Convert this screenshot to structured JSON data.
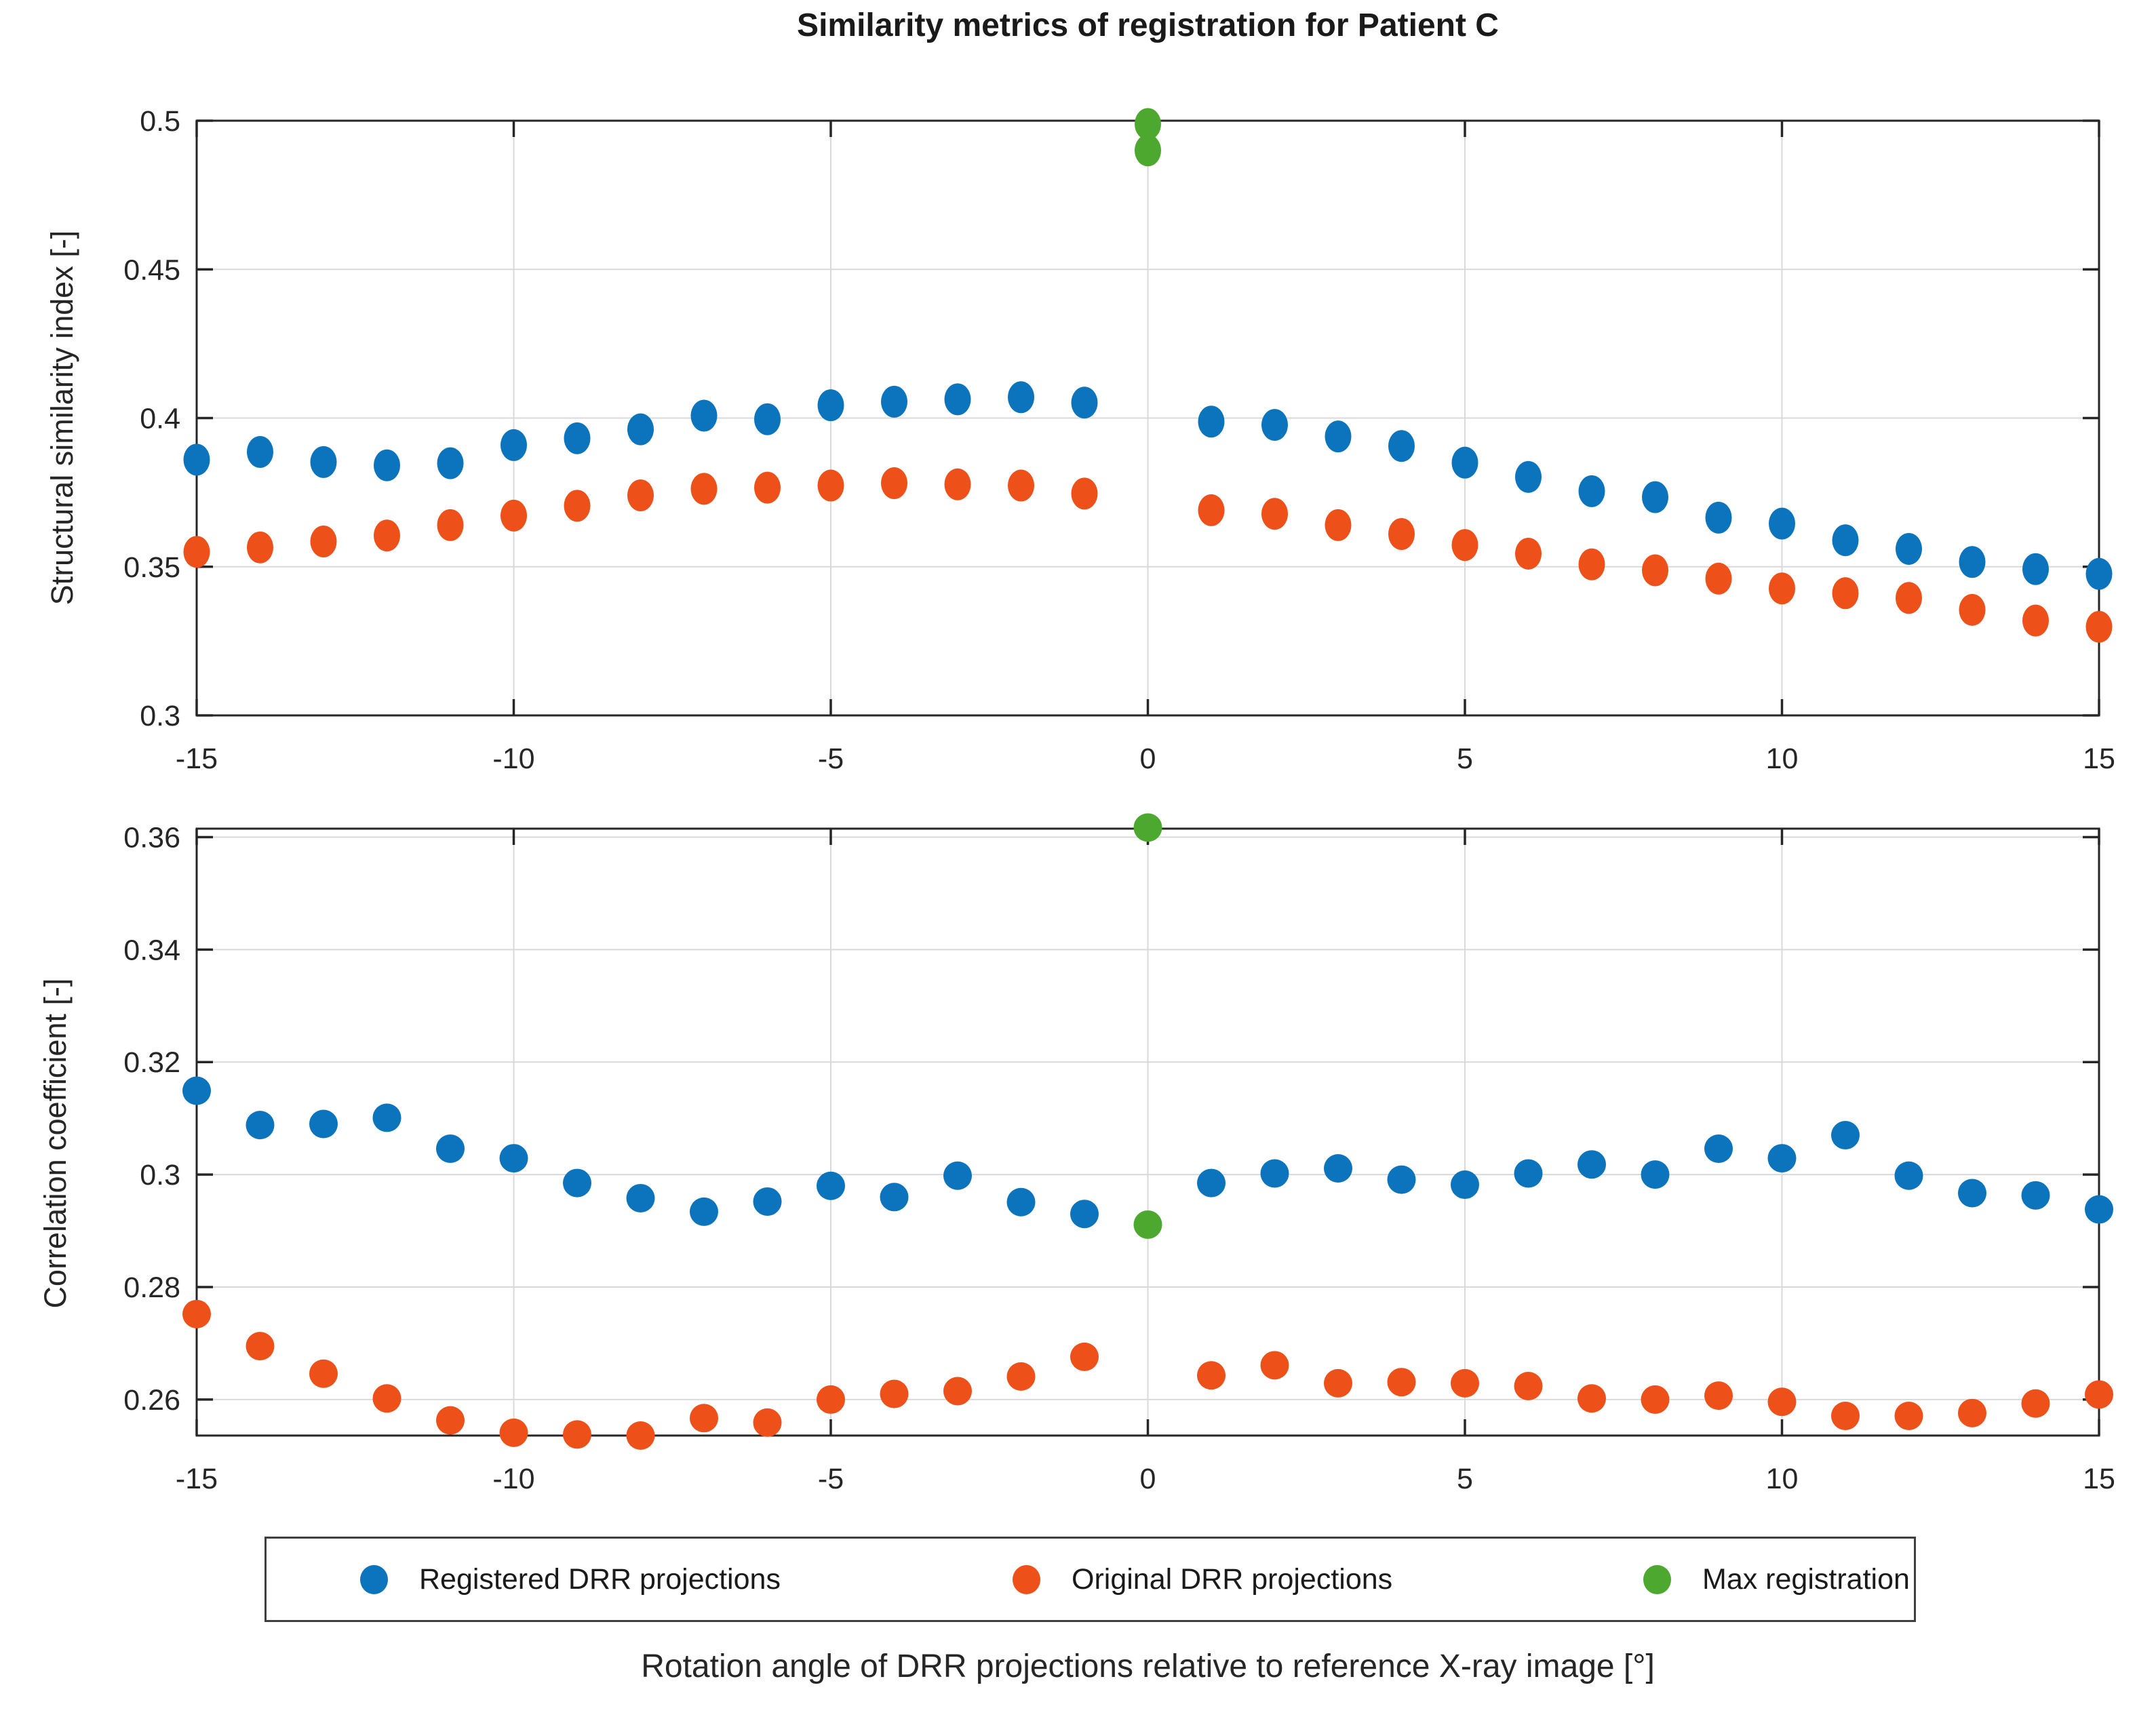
{
  "title": "Similarity metrics of registration for Patient C",
  "xlabel": "Rotation angle of DRR projections relative to reference X-ray image [°]",
  "colors": {
    "registered": "#0b74bd",
    "original": "#ee5019",
    "max": "#4ca82f",
    "axis": "#262626",
    "grid": "#d9d9d9"
  },
  "legend": {
    "items": [
      {
        "label": "Registered DRR projections",
        "color_key": "registered"
      },
      {
        "label": "Original DRR projections",
        "color_key": "original"
      },
      {
        "label": "Max registration",
        "color_key": "max"
      }
    ]
  },
  "chart_data": [
    {
      "type": "scatter",
      "title": "",
      "xlabel": "",
      "ylabel": "Structural similarity index [-]",
      "xlim": [
        -15,
        15
      ],
      "ylim": [
        0.3,
        0.5
      ],
      "xticks": [
        -15,
        -10,
        -5,
        0,
        5,
        10,
        15
      ],
      "xtick_labels": [
        "-15",
        "-10",
        "-5",
        "0",
        "5",
        "10",
        "15"
      ],
      "yticks": [
        0.5,
        0.45,
        0.4,
        0.35,
        0.3
      ],
      "ytick_labels": [
        "0.5",
        "0.45",
        "0.4",
        "0.35",
        "0.3"
      ],
      "grid": true,
      "legend_position": "south-outside",
      "series": [
        {
          "name": "Registered DRR projections",
          "color": "registered",
          "x": [
            -15,
            -14,
            -13,
            -12,
            -11,
            -10,
            -9,
            -8,
            -7,
            -6,
            -5,
            -4,
            -3,
            -2,
            -1,
            1,
            2,
            3,
            4,
            5,
            6,
            7,
            8,
            9,
            10,
            11,
            12,
            13,
            14,
            15
          ],
          "y": [
            0.386,
            0.3886,
            0.3852,
            0.3841,
            0.3848,
            0.3909,
            0.3932,
            0.3962,
            0.4008,
            0.3996,
            0.4043,
            0.4055,
            0.4063,
            0.407,
            0.4052,
            0.3988,
            0.3977,
            0.3938,
            0.3906,
            0.385,
            0.3802,
            0.3754,
            0.3734,
            0.3665,
            0.3645,
            0.3589,
            0.356,
            0.3516,
            0.3492,
            0.3476
          ]
        },
        {
          "name": "Original DRR projections",
          "color": "original",
          "x": [
            -15,
            -14,
            -13,
            -12,
            -11,
            -10,
            -9,
            -8,
            -7,
            -6,
            -5,
            -4,
            -3,
            -2,
            -1,
            1,
            2,
            3,
            4,
            5,
            6,
            7,
            8,
            9,
            10,
            11,
            12,
            13,
            14,
            15
          ],
          "y": [
            0.355,
            0.3565,
            0.3585,
            0.3605,
            0.364,
            0.3672,
            0.3705,
            0.374,
            0.3762,
            0.3766,
            0.3773,
            0.3781,
            0.3777,
            0.3773,
            0.3746,
            0.369,
            0.3678,
            0.364,
            0.361,
            0.3573,
            0.3544,
            0.3508,
            0.3488,
            0.346,
            0.3427,
            0.3411,
            0.3395,
            0.3355,
            0.3319,
            0.3298
          ]
        },
        {
          "name": "Max registration",
          "color": "max",
          "x": [
            0,
            0
          ],
          "y": [
            0.4989,
            0.49
          ]
        }
      ]
    },
    {
      "type": "scatter",
      "title": "",
      "xlabel": "",
      "ylabel": "Correlation coefficient [-]",
      "xlim": [
        -15,
        15
      ],
      "ylim": [
        0.2536,
        0.3615
      ],
      "xticks": [
        -15,
        -10,
        -5,
        0,
        5,
        10,
        15
      ],
      "xtick_labels": [
        "-15",
        "-10",
        "-5",
        "0",
        "5",
        "10",
        "15"
      ],
      "yticks": [
        0.36,
        0.34,
        0.32,
        0.3,
        0.28,
        0.26
      ],
      "ytick_labels": [
        "0.36",
        "0.34",
        "0.32",
        "0.3",
        "0.28",
        "0.26"
      ],
      "grid": true,
      "legend_position": "south-outside",
      "series": [
        {
          "name": "Registered DRR projections",
          "color": "registered",
          "x": [
            -15,
            -14,
            -13,
            -12,
            -11,
            -10,
            -9,
            -8,
            -7,
            -6,
            -5,
            -4,
            -3,
            -2,
            -1,
            1,
            2,
            3,
            4,
            5,
            6,
            7,
            8,
            9,
            10,
            11,
            12,
            13,
            14,
            15
          ],
          "y": [
            0.3149,
            0.3088,
            0.309,
            0.3101,
            0.3046,
            0.3029,
            0.2985,
            0.2958,
            0.2934,
            0.2952,
            0.298,
            0.296,
            0.2998,
            0.2951,
            0.293,
            0.2985,
            0.3002,
            0.3011,
            0.2991,
            0.2982,
            0.3002,
            0.3018,
            0.3,
            0.3046,
            0.3029,
            0.307,
            0.2998,
            0.2967,
            0.2963,
            0.2938
          ]
        },
        {
          "name": "Original DRR projections",
          "color": "original",
          "x": [
            -15,
            -14,
            -13,
            -12,
            -11,
            -10,
            -9,
            -8,
            -7,
            -6,
            -5,
            -4,
            -3,
            -2,
            -1,
            1,
            2,
            3,
            4,
            5,
            6,
            7,
            8,
            9,
            10,
            11,
            12,
            13,
            14,
            15
          ],
          "y": [
            0.2752,
            0.2695,
            0.2646,
            0.2602,
            0.2563,
            0.2541,
            0.2538,
            0.2536,
            0.2567,
            0.2559,
            0.26,
            0.261,
            0.2615,
            0.2641,
            0.2676,
            0.2643,
            0.2661,
            0.2629,
            0.2631,
            0.2629,
            0.2624,
            0.2602,
            0.26,
            0.2607,
            0.2596,
            0.2571,
            0.2571,
            0.2576,
            0.2593,
            0.2609
          ]
        },
        {
          "name": "Max registration",
          "color": "max",
          "x": [
            0,
            0
          ],
          "y": [
            0.3617,
            0.2911
          ]
        }
      ]
    }
  ]
}
